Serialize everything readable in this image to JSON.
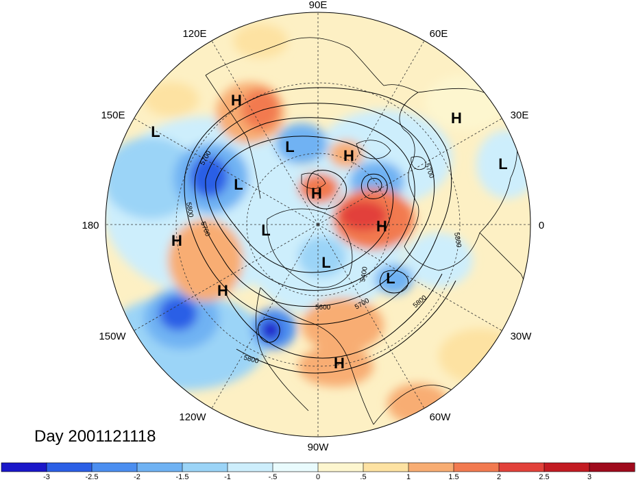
{
  "title": "Day 2001121118",
  "longitude_labels": [
    "90E",
    "60E",
    "30E",
    "0",
    "30W",
    "60W",
    "90W",
    "120W",
    "150W",
    "180",
    "150E",
    "120E"
  ],
  "contour_labels": [
    "5700",
    "5800",
    "5700",
    "5800",
    "5700",
    "5800",
    "5400",
    "5600",
    "5700",
    "5800",
    "5800"
  ],
  "pressure_centers": [
    "H",
    "H",
    "L",
    "L",
    "H",
    "L",
    "H",
    "H",
    "L",
    "H",
    "L",
    "L",
    "H",
    "H",
    "L",
    "H",
    "L"
  ],
  "colorbar": {
    "ticks": [
      "-3",
      "-2.5",
      "-2",
      "-1.5",
      "-1",
      "-.5",
      "0",
      ".5",
      "1",
      "1.5",
      "2",
      "2.5",
      "3"
    ],
    "colors": [
      "#1a17c9",
      "#2b5fe6",
      "#4b8ef0",
      "#6fb2f3",
      "#9bd4f7",
      "#cdeefc",
      "#e9fbfd",
      "#fdf6cf",
      "#fde2a2",
      "#f8ad73",
      "#f27a50",
      "#e2413a",
      "#c31b22",
      "#9f0a1c"
    ]
  },
  "colors": {
    "land_outline": "#000000",
    "grid": "#333333"
  }
}
